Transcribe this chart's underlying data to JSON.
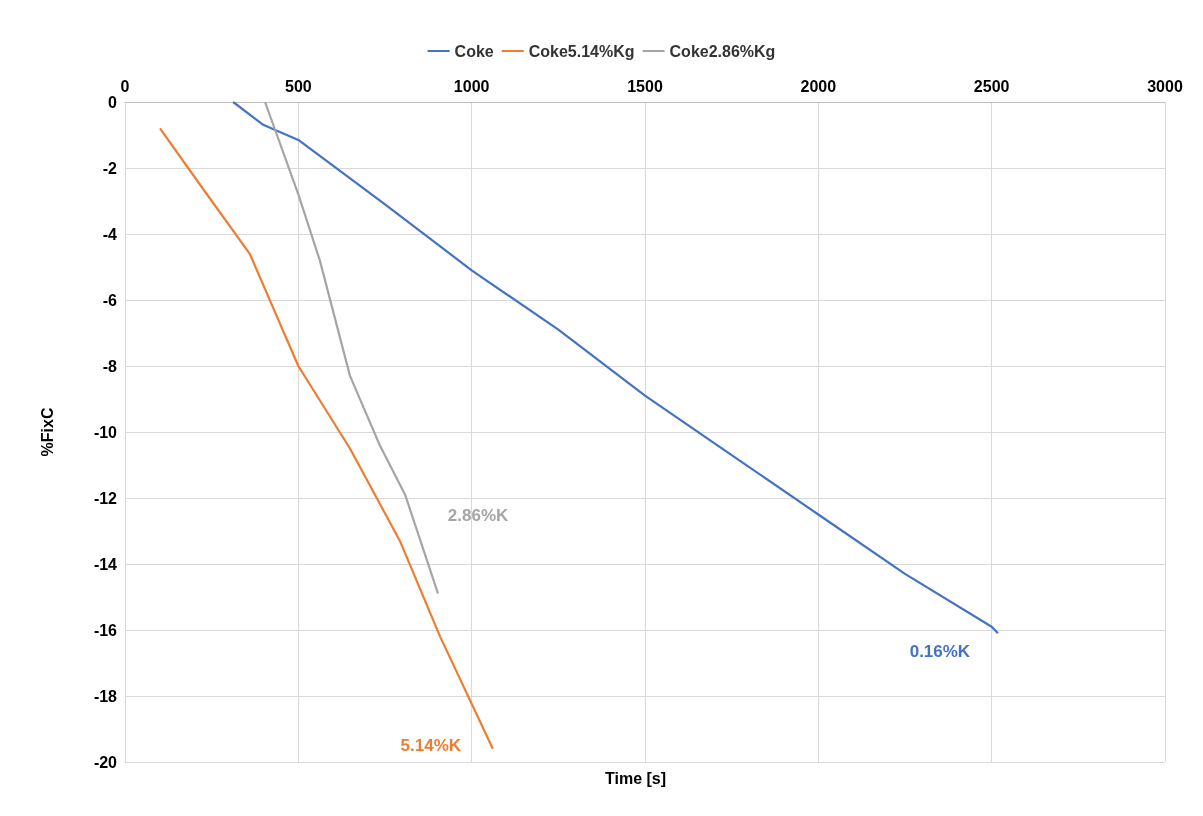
{
  "chart_data": {
    "type": "line",
    "xlabel": "Time [s]",
    "ylabel": "%FixC",
    "series": [
      {
        "name": "Coke",
        "color": "#4472c4",
        "x": [
          312,
          400,
          500,
          750,
          1000,
          1250,
          1500,
          1750,
          2000,
          2250,
          2500,
          2518
        ],
        "values": [
          0,
          -0.7,
          -1.15,
          -3.1,
          -5.1,
          -6.9,
          -8.9,
          -10.7,
          -12.5,
          -14.3,
          -15.9,
          -16.1
        ]
      },
      {
        "name": "Coke5.14%Kg",
        "color": "#ed7d31",
        "x": [
          101,
          216,
          360,
          500,
          649,
          793,
          909,
          1061
        ],
        "values": [
          -0.8,
          -2.5,
          -4.6,
          -8.0,
          -10.5,
          -13.3,
          -16.2,
          -19.6
        ]
      },
      {
        "name": "Coke2.86%Kg",
        "color": "#a5a5a5",
        "x": [
          404,
          500,
          562,
          649,
          735,
          808,
          903
        ],
        "values": [
          0,
          -2.8,
          -4.8,
          -8.3,
          -10.4,
          -11.9,
          -14.9
        ]
      }
    ],
    "annotations": [
      "0.16%K",
      "5.14%K",
      "2.86%K"
    ],
    "xlim": [
      0,
      3000
    ],
    "xticks": [
      0,
      500,
      1000,
      1500,
      2000,
      2500,
      3000
    ],
    "ylim": [
      -20,
      0
    ],
    "yticks": [
      -20,
      -18,
      -16,
      -14,
      -12,
      -10,
      -8,
      -6,
      -4,
      -2,
      0
    ],
    "grid": true,
    "legend": "top",
    "marker": "none",
    "line_style": "solid"
  }
}
